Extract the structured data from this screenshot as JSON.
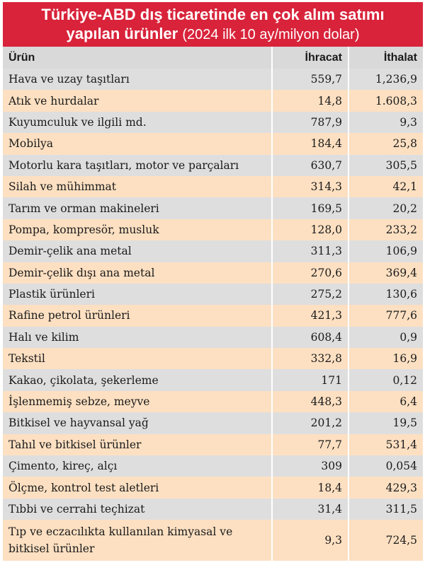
{
  "title": {
    "line1": "Türkiye-ABD dış ticaretinde en çok alım satımı",
    "line2_bold": "yapılan ürünler",
    "line2_sub": "(2024 ilk 10 ay/milyon dolar)"
  },
  "table": {
    "headers": {
      "product": "Ürün",
      "export": "İhracat",
      "import": "İthalat"
    },
    "rows": [
      {
        "product": "Hava ve uzay taşıtları",
        "export": "559,7",
        "import": "1,236,9"
      },
      {
        "product": "Atık ve hurdalar",
        "export": "14,8",
        "import": "1.608,3"
      },
      {
        "product": "Kuyumculuk ve ilgili md.",
        "export": "787,9",
        "import": "9,3"
      },
      {
        "product": "Mobilya",
        "export": "184,4",
        "import": "25,8"
      },
      {
        "product": "Motorlu kara taşıtları, motor ve parçaları",
        "export": "630,7",
        "import": "305,5"
      },
      {
        "product": "Silah ve mühimmat",
        "export": "314,3",
        "import": "42,1"
      },
      {
        "product": "Tarım ve orman makineleri",
        "export": "169,5",
        "import": "20,2"
      },
      {
        "product": "Pompa, kompresör, musluk",
        "export": "128,0",
        "import": "233,2"
      },
      {
        "product": "Demir-çelik ana metal",
        "export": "311,3",
        "import": "106,9"
      },
      {
        "product": "Demir-çelik dışı ana metal",
        "export": "270,6",
        "import": "369,4"
      },
      {
        "product": "Plastik ürünleri",
        "export": "275,2",
        "import": "130,6"
      },
      {
        "product": "Rafine petrol ürünleri",
        "export": "421,3",
        "import": "777,6"
      },
      {
        "product": "Halı ve kilim",
        "export": "608,4",
        "import": "0,9"
      },
      {
        "product": "Tekstil",
        "export": "332,8",
        "import": "16,9"
      },
      {
        "product": "Kakao, çikolata, şekerleme",
        "export": "171",
        "import": "0,12"
      },
      {
        "product": "İşlenmemiş sebze, meyve",
        "export": "448,3",
        "import": "6,4"
      },
      {
        "product": "Bitkisel ve hayvansal yağ",
        "export": "201,2",
        "import": "19,5"
      },
      {
        "product": "Tahıl ve bitkisel ürünler",
        "export": "77,7",
        "import": "531,4"
      },
      {
        "product": "Çimento, kireç, alçı",
        "export": "309",
        "import": "0,054"
      },
      {
        "product": "Ölçme, kontrol test aletleri",
        "export": "18,4",
        "import": "429,3"
      },
      {
        "product": "Tıbbi ve cerrahi teçhizat",
        "export": "31,4",
        "import": "311,5"
      },
      {
        "product": "Tıp ve eczacılıkta kullanılan kimyasal ve bitkisel ürünler",
        "export": "9,3",
        "import": "724,5"
      }
    ]
  }
}
